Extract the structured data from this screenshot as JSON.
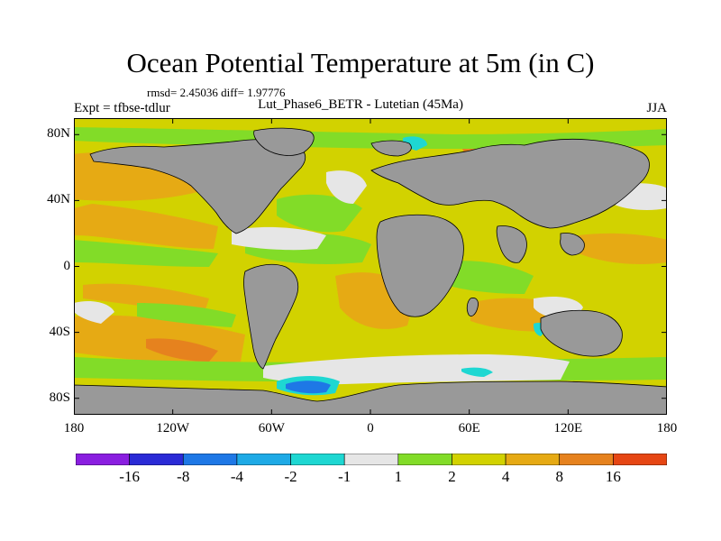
{
  "title": "Ocean Potential Temperature at 5m (in C)",
  "stats_text": "rmsd= 2.45036 diff= 1.97776",
  "expt_text": "Expt = tfbse-tdlur",
  "run_text": "Lut_Phase6_BETR - Lutetian (45Ma)",
  "season_text": "JJA",
  "y_ticks": [
    {
      "label": "80N",
      "lat": 80
    },
    {
      "label": "40N",
      "lat": 40
    },
    {
      "label": "0",
      "lat": 0
    },
    {
      "label": "40S",
      "lat": -40
    },
    {
      "label": "80S",
      "lat": -80
    }
  ],
  "x_ticks": [
    {
      "label": "180",
      "lon": -180
    },
    {
      "label": "120W",
      "lon": -120
    },
    {
      "label": "60W",
      "lon": -60
    },
    {
      "label": "0",
      "lon": 0
    },
    {
      "label": "60E",
      "lon": 60
    },
    {
      "label": "120E",
      "lon": 120
    },
    {
      "label": "180",
      "lon": 180
    }
  ],
  "colorbar": {
    "colors": [
      "#8a1ee0",
      "#2a2ad6",
      "#1e78e6",
      "#1eaae6",
      "#1ed7d2",
      "#e6e6e6",
      "#82dc28",
      "#d2d200",
      "#e6aa14",
      "#e6821e",
      "#e64614"
    ],
    "labels": [
      "-16",
      "-8",
      "-4",
      "-2",
      "-1",
      "1",
      "2",
      "4",
      "8",
      "16"
    ]
  },
  "colors": {
    "land": "#999999",
    "ocean_base": "#d2d200",
    "warm_8": "#e6aa14",
    "warm_16": "#e6821e",
    "weak_2": "#82dc28",
    "neutral": "#e6e6e6",
    "cool_2": "#1ed7d2",
    "cool_4": "#1e78e6"
  }
}
